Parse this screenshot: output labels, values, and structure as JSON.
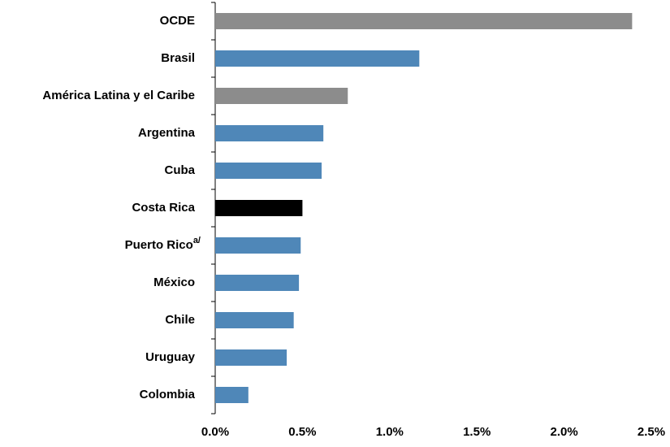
{
  "chart_data": {
    "type": "barh",
    "categories": [
      "OCDE",
      "Brasil",
      "América Latina y el Caribe",
      "Argentina",
      "Cuba",
      "Costa Rica",
      "Puerto Rico",
      "México",
      "Chile",
      "Uruguay",
      "Colombia"
    ],
    "category_superscripts": [
      null,
      null,
      null,
      null,
      null,
      null,
      "a/",
      null,
      null,
      null,
      null
    ],
    "values": [
      2.39,
      1.17,
      0.76,
      0.62,
      0.61,
      0.5,
      0.49,
      0.48,
      0.45,
      0.41,
      0.19
    ],
    "colors": [
      "#8c8c8c",
      "#4f87b8",
      "#8c8c8c",
      "#4f87b8",
      "#4f87b8",
      "#000000",
      "#4f87b8",
      "#4f87b8",
      "#4f87b8",
      "#4f87b8",
      "#4f87b8"
    ],
    "xlim": [
      0,
      2.5
    ],
    "xticks": [
      {
        "value": 0,
        "label": "0.0%"
      },
      {
        "value": 0.5,
        "label": "0.5%"
      },
      {
        "value": 1,
        "label": "1.0%"
      },
      {
        "value": 1.5,
        "label": "1.5%"
      },
      {
        "value": 2,
        "label": "2.0%"
      },
      {
        "value": 2.5,
        "label": "2.5%"
      }
    ],
    "grid": false
  }
}
